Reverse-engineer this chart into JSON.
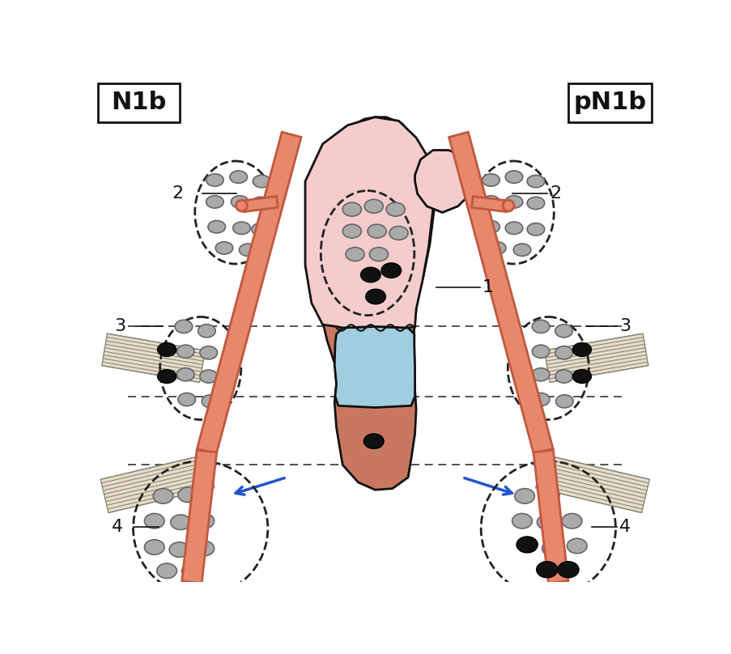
{
  "title_left": "N1b",
  "title_right": "pN1b",
  "label1": "1",
  "label2": "2",
  "label3": "3",
  "label4": "4",
  "bg_color": "#ffffff",
  "vessel_color": "#E8886A",
  "vessel_edge": "#c05840",
  "organ_pink": "#F5CCCC",
  "organ_edge": "#111111",
  "blue_region": "#A0CDE0",
  "salmon_lower": "#C87860",
  "node_gray": "#aaaaaa",
  "node_gray_edge": "#666666",
  "node_black": "#111111",
  "dashed_color": "#333333",
  "arrow_color": "#2255cc",
  "muscle_color": "#e8dcc8",
  "muscle_line": "#888878"
}
